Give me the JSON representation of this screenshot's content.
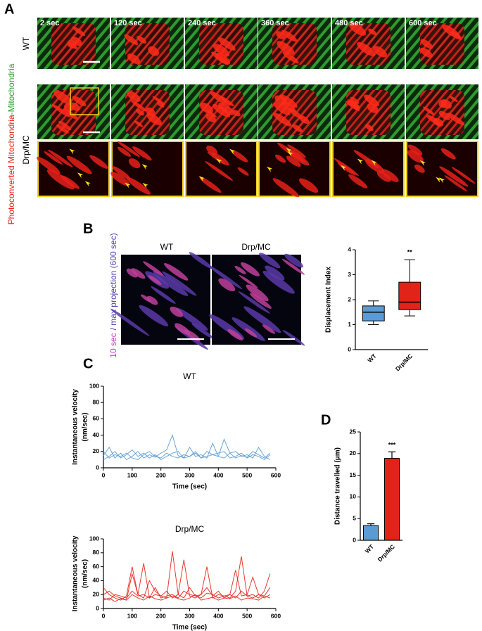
{
  "panel_a": {
    "label": "A",
    "rows": [
      "WT",
      "Drp/MC"
    ],
    "times": [
      "2 sec",
      "120 sec",
      "240 sec",
      "360 sec",
      "480 sec",
      "600 sec"
    ],
    "y_label_red": "Photoconverted Mitochondria",
    "y_label_green": "-Mitochondria"
  },
  "panel_b": {
    "label": "B",
    "images": [
      "WT",
      "Drp/MC"
    ],
    "y_label_magenta": "10 sec",
    "y_label_purple": "/ max projection (600 sec)"
  },
  "panel_c": {
    "label": "C"
  },
  "panel_d": {
    "label": "D"
  },
  "chart_data": [
    {
      "type": "box",
      "categories": [
        "WT",
        "Drp/MC"
      ],
      "y_label": "Displacement Index",
      "ylim": [
        0,
        4
      ],
      "yticks": [
        0,
        1,
        2,
        3,
        4
      ],
      "boxes": [
        {
          "color": "#5b9bd5",
          "min": 1.0,
          "q1": 1.15,
          "median": 1.5,
          "q3": 1.75,
          "max": 1.95
        },
        {
          "color": "#e2231a",
          "min": 1.35,
          "q1": 1.6,
          "median": 1.9,
          "q3": 2.7,
          "max": 3.6
        }
      ],
      "annotation": "**"
    },
    {
      "type": "line",
      "title": "WT",
      "x_label": "Time (sec)",
      "y_label": [
        "Instantaneous velocity",
        "(nm/sec)"
      ],
      "x": [
        0,
        20,
        40,
        60,
        80,
        100,
        120,
        140,
        160,
        180,
        200,
        220,
        240,
        260,
        280,
        300,
        320,
        340,
        360,
        380,
        400,
        420,
        440,
        460,
        480,
        500,
        520,
        540,
        560,
        580
      ],
      "xlim": [
        0,
        600
      ],
      "xticks": [
        0,
        100,
        200,
        300,
        400,
        500,
        600
      ],
      "ylim": [
        0,
        100
      ],
      "yticks": [
        0,
        20,
        40,
        60,
        80,
        100
      ],
      "series": [
        {
          "color": "#5b9bd5",
          "values": [
            15,
            25,
            12,
            18,
            10,
            14,
            20,
            12,
            16,
            13,
            18,
            22,
            40,
            15,
            12,
            14,
            18,
            12,
            20,
            16,
            14,
            35,
            18,
            12,
            15,
            13,
            20,
            16,
            12,
            18
          ]
        },
        {
          "color": "#5b9bd5",
          "values": [
            10,
            14,
            20,
            12,
            16,
            22,
            14,
            18,
            12,
            16,
            10,
            14,
            18,
            20,
            12,
            25,
            14,
            16,
            12,
            30,
            14,
            12,
            18,
            20,
            14,
            16,
            12,
            25,
            14,
            10
          ]
        },
        {
          "color": "#5b9bd5",
          "values": [
            20,
            12,
            16,
            14,
            18,
            12,
            10,
            16,
            20,
            14,
            12,
            18,
            14,
            12,
            16,
            14,
            20,
            12,
            14,
            16,
            18,
            20,
            12,
            14,
            18,
            12,
            16,
            14,
            10,
            16
          ]
        }
      ]
    },
    {
      "type": "line",
      "title": "Drp/MC",
      "x_label": "Time (sec)",
      "y_label": [
        "Instantaneous velocity",
        "(nm/sec)"
      ],
      "x": [
        0,
        20,
        40,
        60,
        80,
        100,
        120,
        140,
        160,
        180,
        200,
        220,
        240,
        260,
        280,
        300,
        320,
        340,
        360,
        380,
        400,
        420,
        440,
        460,
        480,
        500,
        520,
        540,
        560,
        580
      ],
      "xlim": [
        0,
        600
      ],
      "xticks": [
        0,
        100,
        200,
        300,
        400,
        500,
        600
      ],
      "ylim": [
        0,
        100
      ],
      "yticks": [
        0,
        20,
        40,
        60,
        80,
        100
      ],
      "series": [
        {
          "color": "#e2231a",
          "values": [
            30,
            20,
            15,
            12,
            18,
            60,
            20,
            15,
            40,
            25,
            18,
            15,
            82,
            20,
            15,
            30,
            18,
            20,
            60,
            15,
            20,
            18,
            15,
            25,
            75,
            18,
            20,
            15,
            25,
            50
          ]
        },
        {
          "color": "#e2231a",
          "values": [
            20,
            25,
            18,
            15,
            12,
            50,
            20,
            65,
            15,
            20,
            18,
            25,
            15,
            20,
            70,
            18,
            15,
            20,
            30,
            18,
            25,
            15,
            20,
            55,
            18,
            20,
            45,
            20,
            15,
            20
          ]
        },
        {
          "color": "#e2231a",
          "values": [
            15,
            12,
            20,
            18,
            15,
            25,
            18,
            20,
            15,
            30,
            15,
            18,
            20,
            15,
            25,
            20,
            18,
            15,
            22,
            20,
            15,
            18,
            20,
            15,
            25,
            18,
            15,
            20,
            18,
            15
          ]
        },
        {
          "color": "#e2231a",
          "values": [
            12,
            15,
            10,
            14,
            12,
            20,
            15,
            12,
            18,
            14,
            12,
            15,
            18,
            14,
            12,
            15,
            20,
            12,
            14,
            16,
            12,
            15,
            14,
            18,
            12,
            15,
            14,
            12,
            18,
            30
          ]
        }
      ]
    },
    {
      "type": "bar",
      "categories": [
        "WT",
        "Drp/MC"
      ],
      "values": [
        3.4,
        18.9
      ],
      "errors": [
        0.4,
        1.5
      ],
      "colors": [
        "#5b9bd5",
        "#e2231a"
      ],
      "y_label": "Distance travelled (μm)",
      "ylim": [
        0,
        25
      ],
      "yticks": [
        0,
        5,
        10,
        15,
        20,
        25
      ],
      "annotation": "***"
    }
  ]
}
